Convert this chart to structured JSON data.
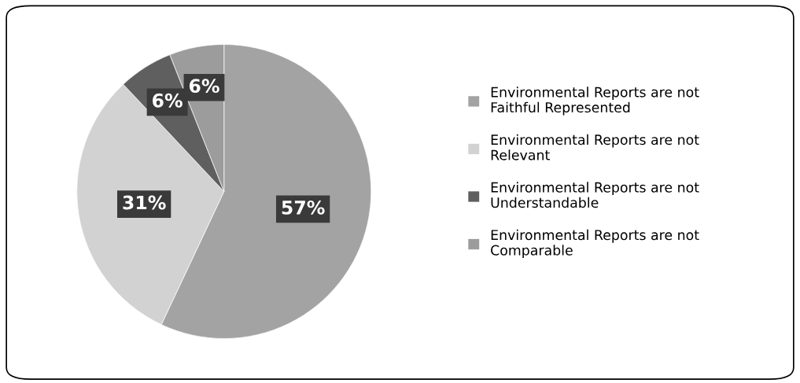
{
  "chart_data": {
    "type": "pie",
    "categories": [
      "Environmental Reports are not Faithful Represented",
      "Environmental Reports are not Relevant",
      "Environmental Reports are not Understandable",
      "Environmental Reports are not Comparable"
    ],
    "values": [
      57,
      31,
      6,
      6
    ],
    "value_labels": [
      "57%",
      "31%",
      "6%",
      "6%"
    ],
    "colors": [
      "#a3a3a3",
      "#d2d2d2",
      "#5f5f5f",
      "#9c9c9c"
    ],
    "legend": "right"
  }
}
